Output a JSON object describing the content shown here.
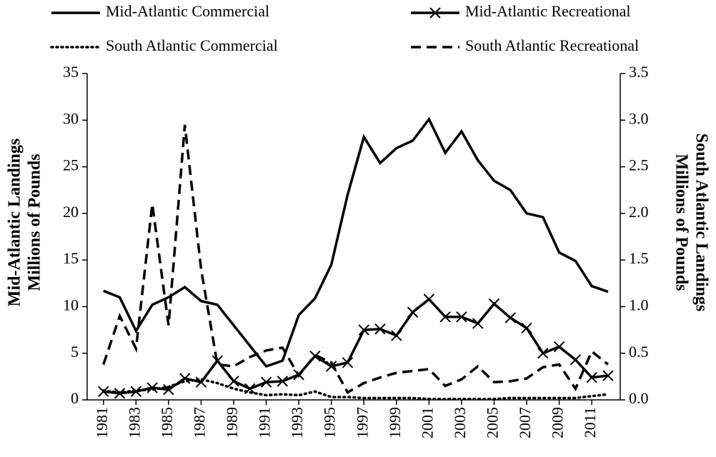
{
  "chart_data": {
    "type": "line",
    "x": [
      1981,
      1982,
      1983,
      1984,
      1985,
      1986,
      1987,
      1988,
      1989,
      1990,
      1991,
      1992,
      1993,
      1994,
      1995,
      1996,
      1997,
      1998,
      1999,
      2000,
      2001,
      2002,
      2003,
      2004,
      2005,
      2006,
      2007,
      2008,
      2009,
      2010,
      2011,
      2012
    ],
    "xlim": [
      1980,
      2012.75
    ],
    "xticks": [
      1981,
      1983,
      1985,
      1987,
      1989,
      1991,
      1993,
      1995,
      1997,
      1999,
      2001,
      2003,
      2005,
      2007,
      2009,
      2011
    ],
    "ylim": [
      0,
      35
    ],
    "yticks": [
      0,
      5,
      10,
      15,
      20,
      25,
      30,
      35
    ],
    "y2lim": [
      0,
      3.5
    ],
    "y2ticks": [
      {
        "value": 0,
        "label": "0.0"
      },
      {
        "value": 0.5,
        "label": "0.5"
      },
      {
        "value": 1,
        "label": "1.0"
      },
      {
        "value": 1.5,
        "label": "1.5"
      },
      {
        "value": 2,
        "label": "2.0"
      },
      {
        "value": 2.5,
        "label": "2.5"
      },
      {
        "value": 3,
        "label": "3.0"
      },
      {
        "value": 3.5,
        "label": "3.5"
      }
    ],
    "ylabel": [
      "Mid-Atlantic Landings",
      "Millions of Pounds"
    ],
    "y2label": [
      "South Atlantic Landings",
      "Millions of Pounds"
    ],
    "series": [
      {
        "name": "Mid-Atlantic Commercial",
        "color": "#000000",
        "style": "solid",
        "values": [
          11.7,
          11.0,
          7.4,
          10.2,
          11.0,
          12.1,
          10.6,
          10.2,
          8.0,
          5.8,
          3.6,
          4.2,
          9.1,
          10.9,
          14.5,
          22.0,
          28.2,
          25.4,
          27.0,
          27.8,
          30.1,
          26.5,
          28.8,
          25.7,
          23.5,
          22.5,
          20.0,
          19.6,
          15.8,
          14.9,
          12.2,
          11.6
        ]
      },
      {
        "name": "Mid-Atlantic Recreational",
        "color": "#000000",
        "style": "solid",
        "marker": "x",
        "values": [
          0.9,
          0.7,
          0.9,
          1.3,
          1.1,
          2.3,
          1.9,
          4.2,
          2.0,
          1.2,
          1.9,
          2.0,
          2.7,
          4.7,
          3.6,
          4.0,
          7.5,
          7.6,
          6.9,
          9.4,
          10.8,
          8.9,
          8.9,
          8.2,
          10.3,
          8.8,
          7.7,
          5.0,
          5.7,
          4.3,
          2.4,
          2.6
        ]
      },
      {
        "name": "South Atlantic Commercial",
        "color": "#000000",
        "style": "dotted",
        "axis": "y2",
        "values": [
          0.1,
          0.08,
          0.1,
          0.11,
          0.14,
          0.2,
          0.22,
          0.18,
          0.12,
          0.08,
          0.05,
          0.06,
          0.05,
          0.09,
          0.03,
          0.03,
          0.02,
          0.02,
          0.02,
          0.02,
          0.01,
          0.01,
          0.01,
          0.01,
          0.01,
          0.02,
          0.02,
          0.02,
          0.02,
          0.02,
          0.04,
          0.06
        ]
      },
      {
        "name": "South Atlantic Recreational",
        "color": "#000000",
        "style": "dashed",
        "axis": "y2",
        "values": [
          0.38,
          0.9,
          0.55,
          2.1,
          0.8,
          2.95,
          1.4,
          0.38,
          0.36,
          0.46,
          0.53,
          0.56,
          0.26,
          0.48,
          0.4,
          0.08,
          0.18,
          0.24,
          0.29,
          0.31,
          0.33,
          0.15,
          0.22,
          0.36,
          0.19,
          0.2,
          0.23,
          0.35,
          0.38,
          0.12,
          0.52,
          0.38
        ]
      }
    ]
  }
}
